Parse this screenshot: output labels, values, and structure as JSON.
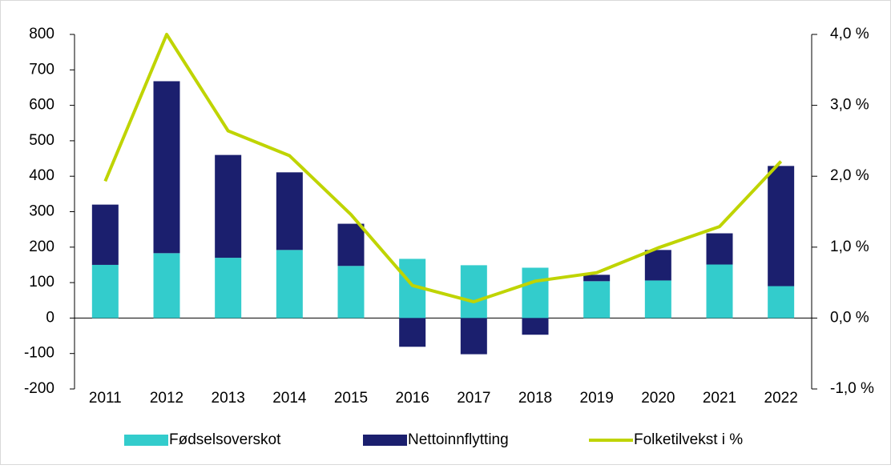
{
  "chart_data": {
    "type": "bar",
    "stacked": true,
    "categories": [
      "2011",
      "2012",
      "2013",
      "2014",
      "2015",
      "2016",
      "2017",
      "2018",
      "2019",
      "2020",
      "2021",
      "2022"
    ],
    "series": [
      {
        "name": "Fødselsoverskot",
        "type": "bar",
        "color": "#33cccc",
        "values": [
          150,
          183,
          170,
          192,
          147,
          167,
          149,
          142,
          104,
          106,
          151,
          90
        ]
      },
      {
        "name": "Nettoinnflytting",
        "type": "bar",
        "color": "#1b1f6e",
        "values": [
          170,
          485,
          290,
          219,
          119,
          -81,
          -102,
          -47,
          18,
          86,
          88,
          339
        ]
      },
      {
        "name": "Folketilvekst i %",
        "type": "line",
        "axis": "y2",
        "color": "#bfd400",
        "values": [
          1.93,
          4.0,
          2.64,
          2.29,
          1.46,
          0.46,
          0.23,
          0.52,
          0.64,
          0.99,
          1.29,
          2.21
        ]
      }
    ],
    "ylim": [
      -200,
      800
    ],
    "yticks": [
      -200,
      -100,
      0,
      100,
      200,
      300,
      400,
      500,
      600,
      700,
      800
    ],
    "y2lim": [
      -1,
      4
    ],
    "y2ticks": [
      {
        "value": -1,
        "label": "-1,0 %"
      },
      {
        "value": 0,
        "label": "0,0 %"
      },
      {
        "value": 1,
        "label": "1,0 %"
      },
      {
        "value": 2,
        "label": "2,0 %"
      },
      {
        "value": 3,
        "label": "3,0 %"
      },
      {
        "value": 4,
        "label": "4,0 %"
      }
    ],
    "legend": "bottom",
    "grid": false
  }
}
